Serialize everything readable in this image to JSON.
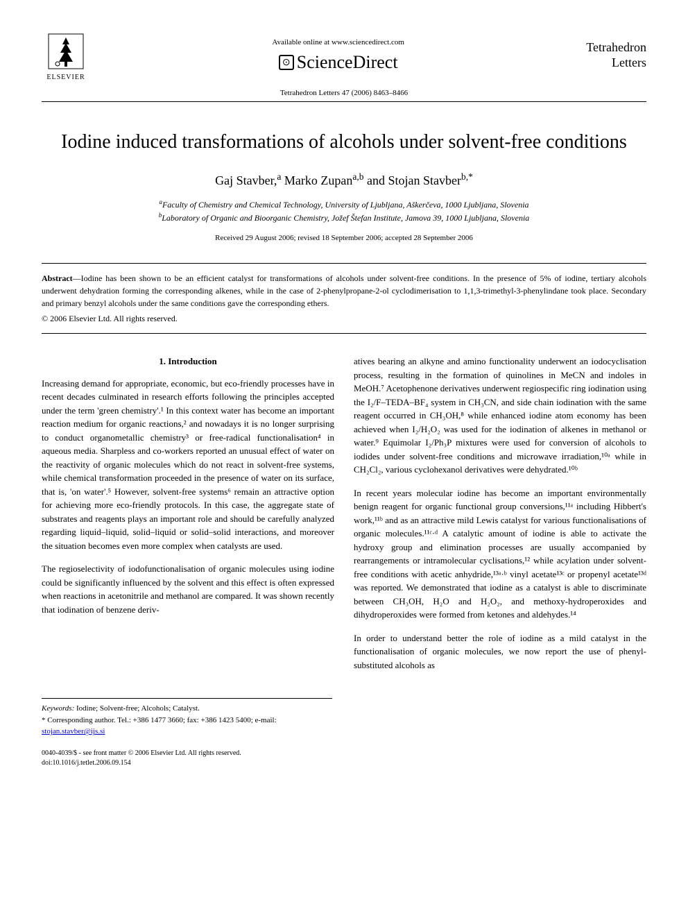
{
  "header": {
    "available_text": "Available online at www.sciencedirect.com",
    "sciencedirect_label": "ScienceDirect",
    "elsevier_label": "ELSEVIER",
    "journal_name_line1": "Tetrahedron",
    "journal_name_line2": "Letters",
    "citation": "Tetrahedron Letters 47 (2006) 8463–8466"
  },
  "article": {
    "title": "Iodine induced transformations of alcohols under solvent-free conditions",
    "authors_html": "Gaj Stavber,<sup>a</sup> Marko Zupan<sup>a,b</sup> and Stojan Stavber<sup>b,*</sup>",
    "affiliation_a": "Faculty of Chemistry and Chemical Technology, University of Ljubljana, Aškerčeva, 1000 Ljubljana, Slovenia",
    "affiliation_b": "Laboratory of Organic and Bioorganic Chemistry, Jožef Štefan Institute, Jamova 39, 1000 Ljubljana, Slovenia",
    "dates": "Received 29 August 2006; revised 18 September 2006; accepted 28 September 2006",
    "abstract_label": "Abstract",
    "abstract_text": "—Iodine has been shown to be an efficient catalyst for transformations of alcohols under solvent-free conditions. In the presence of 5% of iodine, tertiary alcohols underwent dehydration forming the corresponding alkenes, while in the case of 2-phenylpropane-2-ol cyclodimerisation to 1,1,3-trimethyl-3-phenylindane took place. Secondary and primary benzyl alcohols under the same conditions gave the corresponding ethers.",
    "copyright": "© 2006 Elsevier Ltd. All rights reserved."
  },
  "sections": {
    "intro_heading": "1. Introduction",
    "col1_para1": "Increasing demand for appropriate, economic, but eco-friendly processes have in recent decades culminated in research efforts following the principles accepted under the term 'green chemistry'.¹ In this context water has become an important reaction medium for organic reactions,² and nowadays it is no longer surprising to conduct organometallic chemistry³ or free-radical functionalisation⁴ in aqueous media. Sharpless and co-workers reported an unusual effect of water on the reactivity of organic molecules which do not react in solvent-free systems, while chemical transformation proceeded in the presence of water on its surface, that is, 'on water'.⁵ However, solvent-free systems⁶ remain an attractive option for achieving more eco-friendly protocols. In this case, the aggregate state of substrates and reagents plays an important role and should be carefully analyzed regarding liquid–liquid, solid–liquid or solid–solid interactions, and moreover the situation becomes even more complex when catalysts are used.",
    "col1_para2": "The regioselectivity of iodofunctionalisation of organic molecules using iodine could be significantly influenced by the solvent and this effect is often expressed when reactions in acetonitrile and methanol are compared. It was shown recently that iodination of benzene deriv-",
    "col2_para1": "atives bearing an alkyne and amino functionality underwent an iodocyclisation process, resulting in the formation of quinolines in MeCN and indoles in MeOH.⁷ Acetophenone derivatives underwent regiospecific ring iodination using the I₂/F–TEDA–BF₄ system in CH₃CN, and side chain iodination with the same reagent occurred in CH₃OH,⁸ while enhanced iodine atom economy has been achieved when I₂/H₂O₂ was used for the iodination of alkenes in methanol or water.⁹ Equimolar I₂/Ph₃P mixtures were used for conversion of alcohols to iodides under solvent-free conditions and microwave irradiation,¹⁰ᵃ while in CH₂Cl₂, various cyclohexanol derivatives were dehydrated.¹⁰ᵇ",
    "col2_para2": "In recent years molecular iodine has become an important environmentally benign reagent for organic functional group conversions,¹¹ᵃ including Hibbert's work,¹¹ᵇ and as an attractive mild Lewis catalyst for various functionalisations of organic molecules.¹¹ᶜ·ᵈ A catalytic amount of iodine is able to activate the hydroxy group and elimination processes are usually accompanied by rearrangements or intramolecular cyclisations,¹² while acylation under solvent-free conditions with acetic anhydride,¹³ᵃ·ᵇ vinyl acetate¹³ᶜ or propenyl acetate¹³ᵈ was reported. We demonstrated that iodine as a catalyst is able to discriminate between CH₃OH, H₂O and H₂O₂, and methoxy-hydroperoxides and dihydroperoxides were formed from ketones and aldehydes.¹⁴",
    "col2_para3": "In order to understand better the role of iodine as a mild catalyst in the functionalisation of organic molecules, we now report the use of phenyl-substituted alcohols as"
  },
  "footnotes": {
    "keywords_label": "Keywords:",
    "keywords": " Iodine; Solvent-free; Alcohols; Catalyst.",
    "corresponding": "* Corresponding author. Tel.: +386 1477 3660; fax: +386 1423 5400; e-mail: ",
    "email": "stojan.stavber@ijs.si",
    "doi_line1": "0040-4039/$ - see front matter © 2006 Elsevier Ltd. All rights reserved.",
    "doi_line2": "doi:10.1016/j.tetlet.2006.09.154"
  },
  "colors": {
    "text": "#000000",
    "background": "#ffffff",
    "link": "#0000cc"
  }
}
